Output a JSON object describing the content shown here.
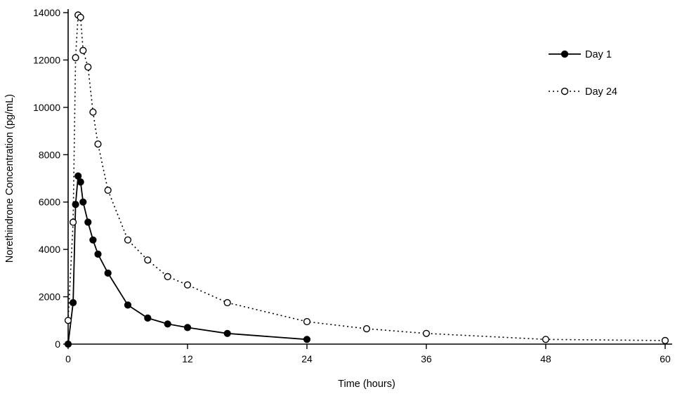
{
  "chart_data": {
    "type": "line",
    "title": "",
    "xlabel": "Time (hours)",
    "ylabel": "Norethindrone Concentration (pg/mL)",
    "xlim": [
      0,
      60
    ],
    "ylim": [
      0,
      14000
    ],
    "xticks": [
      0,
      12,
      24,
      36,
      48,
      60
    ],
    "yticks": [
      0,
      2000,
      4000,
      6000,
      8000,
      10000,
      12000,
      14000
    ],
    "grid": false,
    "legend_position": "top-right",
    "axis_color": "#000000",
    "series": [
      {
        "name": "Day 1",
        "marker": "filled-circle",
        "line_style": "solid",
        "color": "#000000",
        "x": [
          0,
          0.5,
          0.75,
          1,
          1.25,
          1.5,
          2,
          2.5,
          3,
          4,
          6,
          8,
          10,
          12,
          16,
          24
        ],
        "y": [
          0,
          1750,
          5900,
          7100,
          6850,
          6000,
          5150,
          4400,
          3800,
          3000,
          1650,
          1100,
          850,
          700,
          450,
          200
        ]
      },
      {
        "name": "Day 24",
        "marker": "open-circle",
        "line_style": "dotted",
        "color": "#000000",
        "x": [
          0,
          0.5,
          0.75,
          1,
          1.25,
          1.5,
          2,
          2.5,
          3,
          4,
          6,
          8,
          10,
          12,
          16,
          24,
          30,
          36,
          48,
          60
        ],
        "y": [
          1000,
          5150,
          12100,
          13900,
          13800,
          12400,
          11700,
          9800,
          8450,
          6500,
          4400,
          3550,
          2850,
          2500,
          1750,
          950,
          650,
          450,
          200,
          150
        ]
      }
    ]
  },
  "legend": {
    "items": [
      {
        "label": "Day 1",
        "marker": "filled-circle",
        "line_style": "solid"
      },
      {
        "label": "Day 24",
        "marker": "open-circle",
        "line_style": "dotted"
      }
    ]
  }
}
